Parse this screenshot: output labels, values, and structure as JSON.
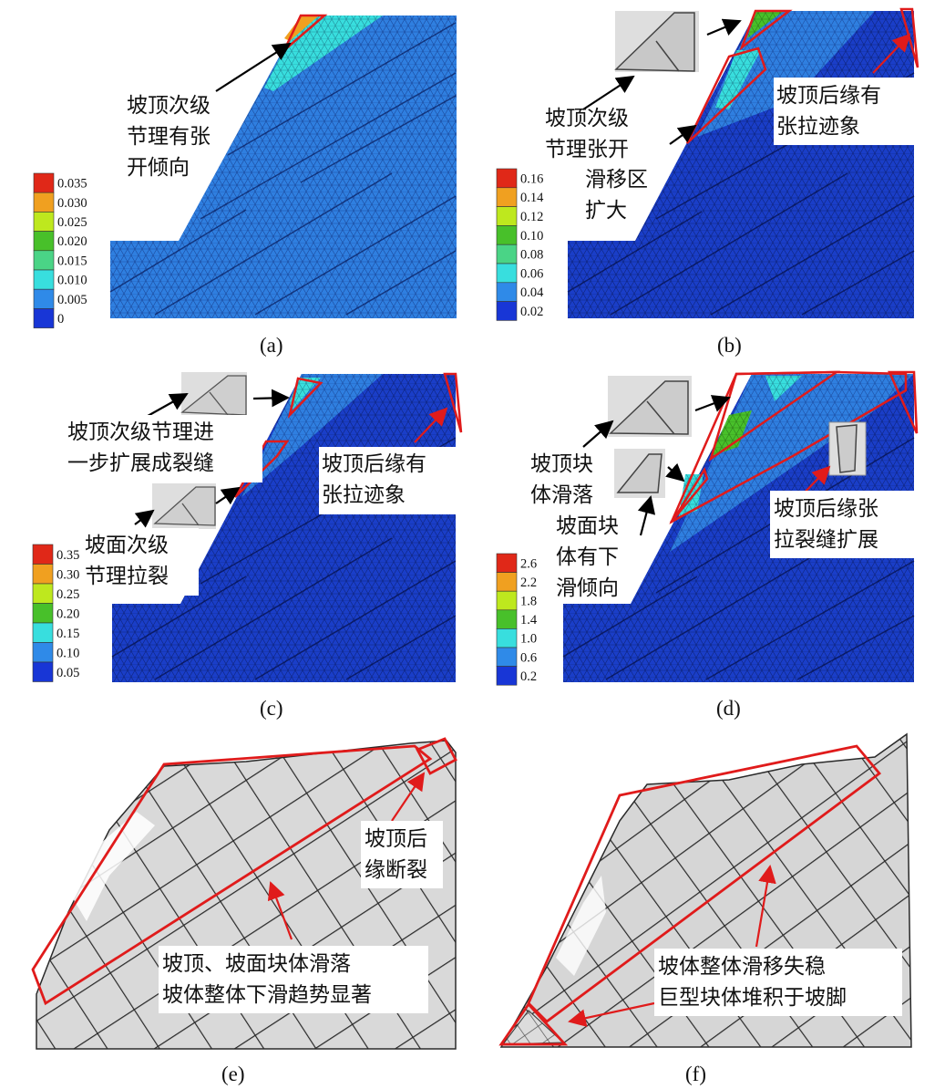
{
  "colors": {
    "mesh_light": "#2f7fe0",
    "mesh_dark": "#1a3ec8",
    "mesh_line": "#0b1f66",
    "highlight": "#e01b1b",
    "block": "#d9d9d9",
    "block_edge": "#2a2a2a",
    "scale": [
      "#1836d6",
      "#2f8ae8",
      "#38dede",
      "#4ad486",
      "#48c02a",
      "#bee81e",
      "#f0a020",
      "#e02818"
    ]
  },
  "panels": [
    {
      "caption": "(a)",
      "annotations": [
        {
          "lines": [
            "坡顶次级",
            "节理有张",
            "开倾向"
          ]
        }
      ],
      "legend": [
        "0.035",
        "0.030",
        "0.025",
        "0.020",
        "0.015",
        "0.010",
        "0.005",
        "0"
      ]
    },
    {
      "caption": "(b)",
      "annotations": [
        {
          "lines": [
            "坡顶次级",
            "节理张开"
          ]
        },
        {
          "lines": [
            "滑移区",
            "扩大"
          ]
        },
        {
          "lines": [
            "坡顶后缘有",
            "张拉迹象"
          ]
        }
      ],
      "legend": [
        "0.16",
        "0.14",
        "0.12",
        "0.10",
        "0.08",
        "0.06",
        "0.04",
        "0.02"
      ]
    },
    {
      "caption": "(c)",
      "annotations": [
        {
          "lines": [
            "坡顶次级节理进",
            "一步扩展成裂缝"
          ]
        },
        {
          "lines": [
            "坡顶后缘有",
            "张拉迹象"
          ]
        },
        {
          "lines": [
            "坡面次级",
            "节理拉裂"
          ]
        }
      ],
      "legend": [
        "0.35",
        "0.30",
        "0.25",
        "0.20",
        "0.15",
        "0.10",
        "0.05"
      ]
    },
    {
      "caption": "(d)",
      "annotations": [
        {
          "lines": [
            "坡顶块",
            "体滑落"
          ]
        },
        {
          "lines": [
            "坡面块",
            "体有下",
            "滑倾向"
          ]
        },
        {
          "lines": [
            "坡顶后缘张",
            "拉裂缝扩展"
          ]
        }
      ],
      "legend": [
        "2.6",
        "2.2",
        "1.8",
        "1.4",
        "1.0",
        "0.6",
        "0.2"
      ]
    },
    {
      "caption": "(e)",
      "annotations": [
        {
          "lines": [
            "坡顶后",
            "缘断裂"
          ]
        },
        {
          "lines": [
            "坡顶、坡面块体滑落",
            "坡体整体下滑趋势显著"
          ]
        }
      ]
    },
    {
      "caption": "(f)",
      "annotations": [
        {
          "lines": [
            "坡体整体滑移失稳",
            "巨型块体堆积于坡脚"
          ]
        }
      ]
    }
  ]
}
